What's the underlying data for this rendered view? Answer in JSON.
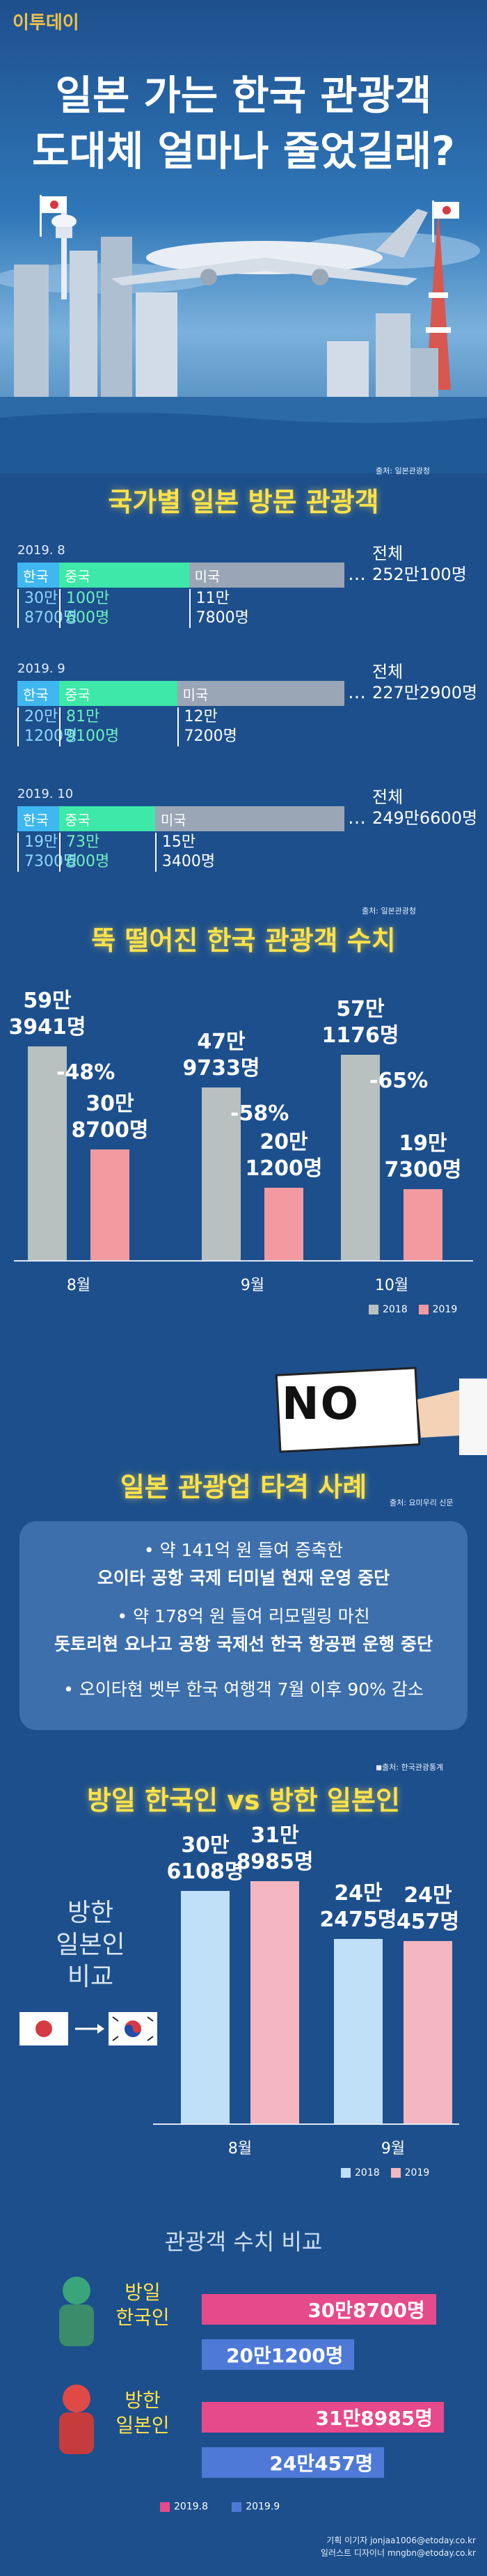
{
  "logo": {
    "brand": "이투데이"
  },
  "hero": {
    "title_line1": "일본 가는 한국 관광객",
    "title_line2": "도대체 얼마나 줄었길래?"
  },
  "section1": {
    "title": "국가별 일본 방문 관광객",
    "source": "출처: 일본관광청",
    "rows": [
      {
        "date": "2019. 8",
        "labels": [
          "한국",
          "중국",
          "미국"
        ],
        "values": [
          "30만\n8700명",
          "100만\n600명",
          "11만\n7800명"
        ],
        "total_label": "전체",
        "total": "252만100명"
      },
      {
        "date": "2019. 9",
        "labels": [
          "한국",
          "중국",
          "미국"
        ],
        "values": [
          "20만\n1200명",
          "81만\n9100명",
          "12만\n7200명"
        ],
        "total_label": "전체",
        "total": "227만2900명"
      },
      {
        "date": "2019. 10",
        "labels": [
          "한국",
          "중국",
          "미국"
        ],
        "values": [
          "19만\n7300명",
          "73만\n600명",
          "15만\n3400명"
        ],
        "total_label": "전체",
        "total": "249만6600명"
      }
    ]
  },
  "section2": {
    "title": "뚝 떨어진 한국 관광객 수치",
    "source": "출처: 일본관광청"
  },
  "section3": {
    "sign": "NO",
    "title": "일본 관광업 타격 사례",
    "source": "출처: 요미우리 신문",
    "cases": [
      {
        "line1": "• 약 141억 원 들여 증축한",
        "line2": "오이타 공항 국제 터미널 현재 운영 중단"
      },
      {
        "line1": "• 약 178억 원 들여 리모델링 마친",
        "line2": "돗토리현 요나고 공항 국제선 한국 항공편 운행 중단"
      },
      {
        "line1": "• 오이타현 벳부 한국 여행객 7월 이후 90% 감소",
        "line2": ""
      }
    ]
  },
  "section4": {
    "title": "방일 한국인 vs 방한 일본인",
    "source": "◼출처: 한국관광통계",
    "side_label": [
      "방한",
      "일본인",
      "비교"
    ]
  },
  "section5": {
    "title": "관광객 수치 비교",
    "groups": [
      {
        "label": [
          "방일",
          "한국인"
        ],
        "bars": [
          "30만8700명",
          "20만1200명"
        ]
      },
      {
        "label": [
          "방한",
          "일본인"
        ],
        "bars": [
          "31만8985명",
          "24만457명"
        ]
      }
    ],
    "legend": [
      "2019.8",
      "2019.9"
    ]
  },
  "credits": [
    "기획 이기자 jonjaa1006@etoday.co.kr",
    "일러스트 디자이너 mngbn@etoday.co.kr"
  ],
  "colors": {
    "korea": "#3fb7f0",
    "china": "#3de8a8",
    "usa": "#9aa6b5",
    "bar2018": "#b8c0c0",
    "bar2019": "#f29aa0",
    "bar2018_b": "#bfe0f6",
    "bar2019_b": "#f4b6c0",
    "pink": "#e64a8a",
    "blue": "#4e79d6",
    "title_yellow": "#ffe24a"
  },
  "chart_data": [
    {
      "type": "bar",
      "title": "뚝 떨어진 한국 관광객 수치",
      "categories": [
        "8월",
        "9월",
        "10월"
      ],
      "series": [
        {
          "name": "2018",
          "values": [
            593941,
            479733,
            571176
          ],
          "labels": [
            "59만\n3941명",
            "47만\n9733명",
            "57만\n1176명"
          ]
        },
        {
          "name": "2019",
          "values": [
            308700,
            201200,
            197300
          ],
          "labels": [
            "30만\n8700명",
            "20만\n1200명",
            "19만\n7300명"
          ]
        }
      ],
      "change_labels": [
        "-48%",
        "-58%",
        "-65%"
      ],
      "ylim": [
        0,
        620000
      ],
      "legend": "bottom-right"
    },
    {
      "type": "bar",
      "title": "방일 한국인 vs 방한 일본인",
      "categories": [
        "8월",
        "9월"
      ],
      "series": [
        {
          "name": "2018",
          "values": [
            306108,
            242475
          ],
          "labels": [
            "30만\n6108명",
            "24만\n2475명"
          ]
        },
        {
          "name": "2019",
          "values": [
            318985,
            240457
          ],
          "labels": [
            "31만\n8985명",
            "24만\n457명"
          ]
        }
      ],
      "ylim": [
        0,
        330000
      ],
      "legend": "bottom-right"
    },
    {
      "type": "bar",
      "title": "관광객 수치 비교",
      "categories": [
        "방일 한국인",
        "방한 일본인"
      ],
      "series": [
        {
          "name": "2019.8",
          "values": [
            308700,
            318985
          ]
        },
        {
          "name": "2019.9",
          "values": [
            201200,
            240457
          ]
        }
      ]
    }
  ]
}
